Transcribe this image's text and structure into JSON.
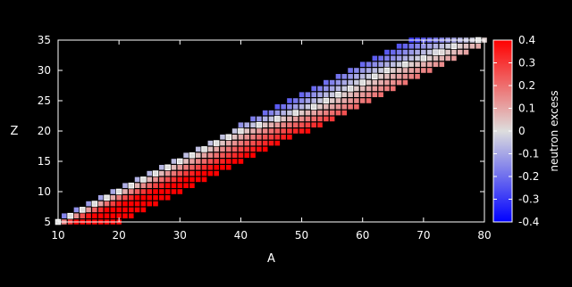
{
  "chart_data": {
    "type": "heatmap",
    "title": "",
    "xlabel": "A",
    "ylabel": "Z",
    "xlim": [
      10,
      80
    ],
    "ylim": [
      5,
      35
    ],
    "xticks": [
      10,
      20,
      30,
      40,
      50,
      60,
      70,
      80
    ],
    "yticks": [
      5,
      10,
      15,
      20,
      25,
      30,
      35
    ],
    "grid": false,
    "background": "#000000",
    "marker": "filled square per nuclide (A, Z); white outline marks stable nuclides",
    "band_model": {
      "description": "isotope band: for each Z, A ranges over a contiguous span; colour = neutron excess",
      "z_min": 5,
      "z_max": 35,
      "a_lo_at_zmin": 9,
      "a_lo_at_zmax": 68,
      "a_hi_at_zmin": 20,
      "a_hi_at_zmax": 81
    },
    "stable_line": [
      [
        10,
        5
      ],
      [
        12,
        6
      ],
      [
        14,
        7
      ],
      [
        16,
        8
      ],
      [
        20,
        10
      ],
      [
        24,
        12
      ],
      [
        28,
        14
      ],
      [
        32,
        16
      ],
      [
        36,
        18
      ],
      [
        40,
        20
      ],
      [
        46,
        22
      ],
      [
        52,
        24
      ],
      [
        56,
        26
      ],
      [
        60,
        28
      ],
      [
        64,
        30
      ],
      [
        70,
        32
      ],
      [
        75,
        34
      ],
      [
        79,
        35
      ]
    ],
    "colorbar": {
      "label": "neutron excess",
      "min": -0.4,
      "max": 0.4,
      "ticks": [
        "0.4",
        "0.3",
        "0.2",
        "0.1",
        "0",
        "-0.1",
        "-0.2",
        "-0.3",
        "-0.4"
      ],
      "colors": {
        "low": "#0000ff",
        "mid": "#dddddd",
        "high": "#ff0000"
      }
    }
  }
}
